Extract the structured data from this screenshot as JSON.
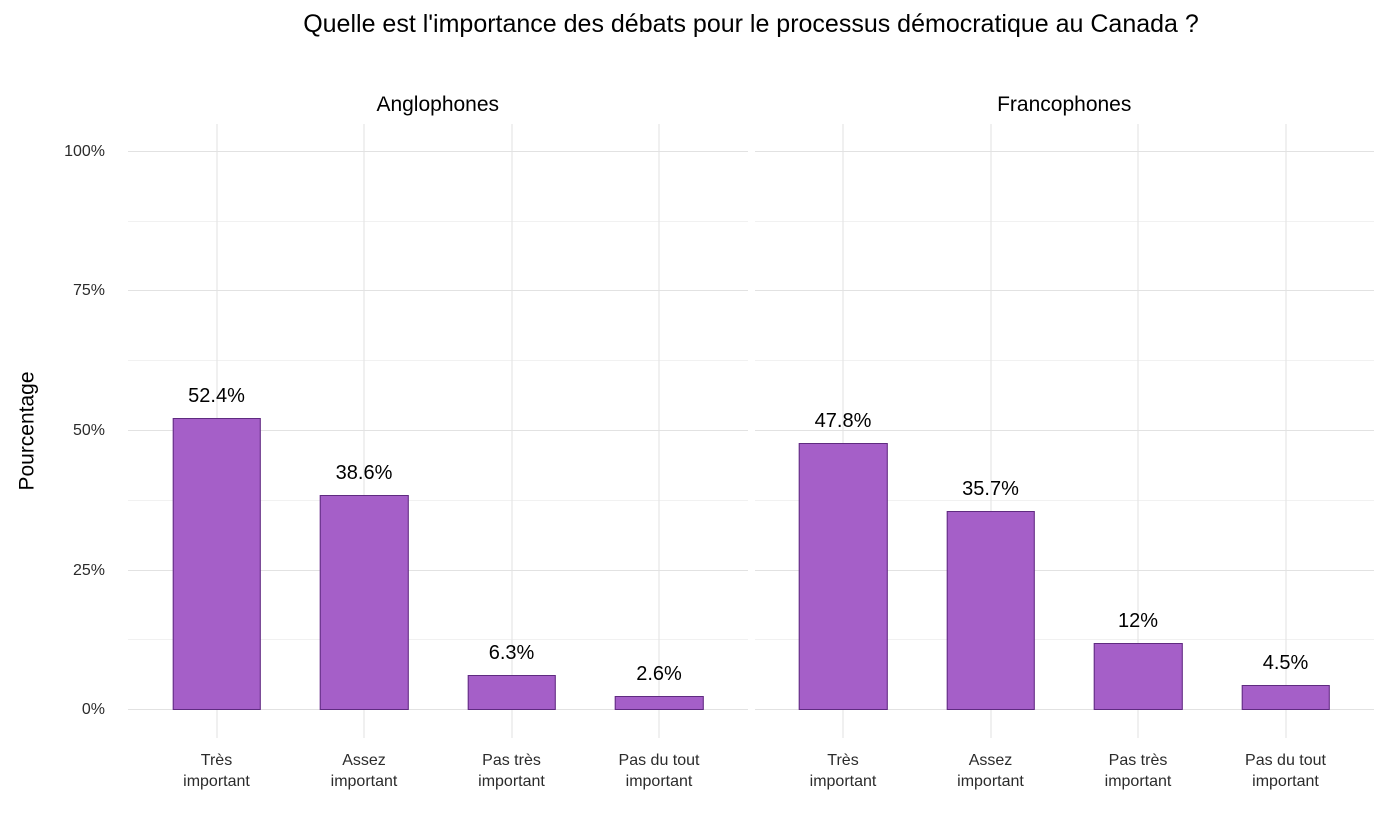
{
  "chart_data": {
    "type": "bar",
    "title": "Quelle est l'importance des débats pour le processus démocratique au Canada ?",
    "ylabel": "Pourcentage",
    "xlabel": "",
    "categories": [
      "Très\nimportant",
      "Assez\nimportant",
      "Pas très\nimportant",
      "Pas du tout\nimportant"
    ],
    "facets": [
      {
        "label": "Anglophones",
        "values": [
          52.4,
          38.6,
          6.3,
          2.6
        ],
        "value_labels": [
          "52.4%",
          "38.6%",
          "6.3%",
          "2.6%"
        ]
      },
      {
        "label": "Francophones",
        "values": [
          47.8,
          35.7,
          12,
          4.5
        ],
        "value_labels": [
          "47.8%",
          "35.7%",
          "12%",
          "4.5%"
        ]
      }
    ],
    "ylim": [
      0,
      100
    ],
    "y_tick_values": [
      0,
      25,
      50,
      75,
      100
    ],
    "y_tick_labels": [
      "0%",
      "25%",
      "50%",
      "75%",
      "100%"
    ],
    "minor_gridline_values": [
      12.5,
      37.5,
      62.5,
      87.5
    ],
    "grid": true,
    "legend": "none",
    "colors": {
      "bar_fill": "#a55fc8",
      "bar_stroke": "#5f2b80",
      "grid_major": "#e2e2e2",
      "grid_minor": "#f1f1f1",
      "text": "#000000",
      "background": "#ffffff"
    }
  }
}
